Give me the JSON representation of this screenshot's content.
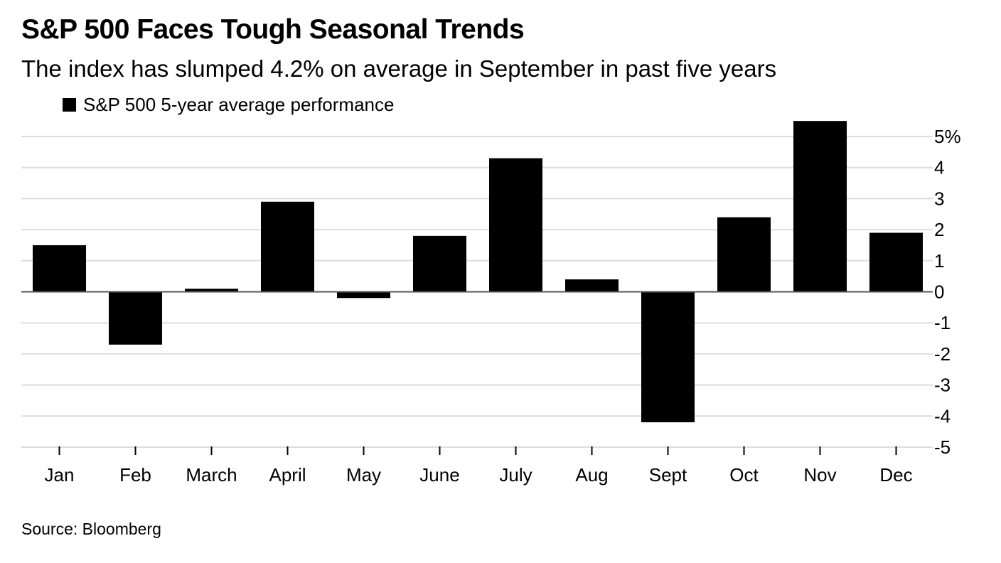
{
  "header": {
    "title": "S&P 500 Faces Tough Seasonal Trends",
    "subtitle": "The index has slumped 4.2% on average in September in past five years"
  },
  "legend": {
    "label": "S&P 500 5-year average performance"
  },
  "footer": {
    "source": "Source: Bloomberg"
  },
  "colors": {
    "bar": "#000000",
    "grid": "#dddddd",
    "zero_line": "#555555",
    "background": "#ffffff"
  },
  "chart_data": {
    "type": "bar",
    "title": "S&P 500 Faces Tough Seasonal Trends",
    "subtitle": "The index has slumped 4.2% on average in September in past five years",
    "xlabel": "",
    "ylabel": "",
    "categories": [
      "Jan",
      "Feb",
      "March",
      "April",
      "May",
      "June",
      "July",
      "Aug",
      "Sept",
      "Oct",
      "Nov",
      "Dec"
    ],
    "series": [
      {
        "name": "S&P 500 5-year average performance",
        "values": [
          1.5,
          -1.7,
          0.1,
          2.9,
          -0.2,
          1.8,
          4.3,
          0.4,
          -4.2,
          2.4,
          5.5,
          1.9
        ]
      }
    ],
    "ylim": [
      -5,
      5
    ],
    "yticks": [
      5,
      4,
      3,
      2,
      1,
      0,
      -1,
      -2,
      -3,
      -4,
      -5
    ],
    "ytick_labels": [
      "5%",
      "4",
      "3",
      "2",
      "1",
      "0",
      "-1",
      "-2",
      "-3",
      "-4",
      "-5"
    ],
    "y_axis_position": "right",
    "grid": true,
    "legend_position": "top-left"
  }
}
